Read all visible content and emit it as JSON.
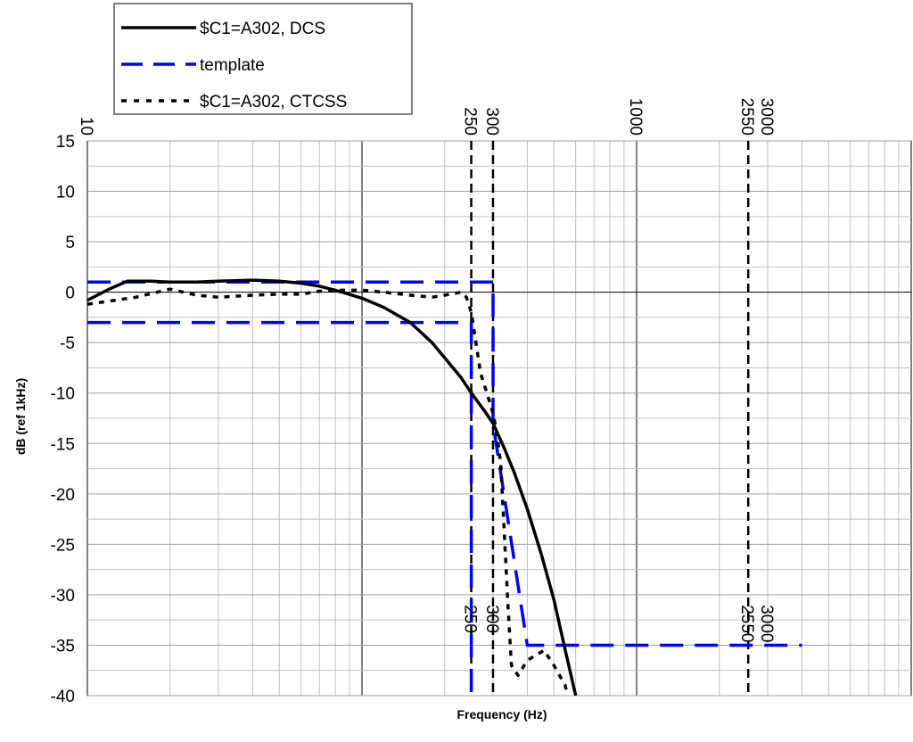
{
  "chart_data": {
    "type": "line",
    "xlabel": "Frequency (Hz)",
    "ylabel": "dB (ref 1kHz)",
    "x_scale": "log",
    "xlim": [
      10,
      10000
    ],
    "ylim": [
      -40,
      15
    ],
    "y_ticks": [
      15,
      10,
      5,
      0,
      -5,
      -10,
      -15,
      -20,
      -25,
      -30,
      -35,
      -40
    ],
    "grid": true,
    "legend_position": "top-left",
    "top_tick_labels": [
      "10",
      "250",
      "300",
      "1000",
      "2550",
      "3000"
    ],
    "marker_lines": [
      {
        "x": 250,
        "label": "250"
      },
      {
        "x": 300,
        "label": "300"
      },
      {
        "x": 2550,
        "label": "2550"
      }
    ],
    "bottom_labels": [
      {
        "x": 250,
        "label": "250"
      },
      {
        "x": 300,
        "label": "300"
      },
      {
        "x": 2550,
        "label": "2550"
      },
      {
        "x": 3000,
        "label": "3000"
      }
    ],
    "series": [
      {
        "name": "$C1=A302, DCS",
        "color": "#000000",
        "style": "solid",
        "x": [
          10,
          12,
          14,
          17,
          20,
          25,
          30,
          40,
          50,
          60,
          70,
          80,
          100,
          120,
          150,
          180,
          200,
          230,
          250,
          280,
          300,
          330,
          360,
          400,
          450,
          500,
          550,
          600
        ],
        "y": [
          -0.8,
          0.3,
          1.1,
          1.1,
          1.0,
          1.0,
          1.1,
          1.2,
          1.1,
          0.9,
          0.6,
          0.2,
          -0.6,
          -1.5,
          -3.0,
          -5.0,
          -6.5,
          -8.5,
          -10.0,
          -11.8,
          -13.0,
          -15.5,
          -18.0,
          -21.5,
          -26.0,
          -30.5,
          -35.5,
          -40.0
        ]
      },
      {
        "name": "template",
        "color": "#0000ff",
        "style": "dashed",
        "x": [
          10,
          300,
          300,
          400,
          4000
        ],
        "y": [
          1,
          1,
          -13,
          -35,
          -35
        ]
      },
      {
        "name": "template",
        "color": "#0000ff",
        "style": "dashed",
        "x": [
          10,
          250,
          250
        ],
        "y": [
          -3,
          -3,
          -40
        ]
      },
      {
        "name": "$C1=A302, CTCSS",
        "color": "#000000",
        "style": "dotted",
        "x": [
          10,
          15,
          20,
          25,
          30,
          40,
          50,
          60,
          70,
          80,
          100,
          120,
          150,
          180,
          200,
          230,
          240,
          250,
          260,
          270,
          285,
          300,
          310,
          320,
          330,
          340,
          350,
          370,
          400,
          430,
          460,
          500,
          550,
          560
        ],
        "y": [
          -1.2,
          -0.5,
          0.3,
          -0.3,
          -0.5,
          -0.3,
          -0.2,
          -0.2,
          0.1,
          0.2,
          0.2,
          0.0,
          -0.3,
          -0.5,
          -0.3,
          0.0,
          -0.5,
          -2.0,
          -5.0,
          -8.0,
          -10.0,
          -12.0,
          -14.0,
          -17.0,
          -24.0,
          -31.0,
          -37.0,
          -38.0,
          -36.5,
          -36.0,
          -35.5,
          -37.0,
          -39.0,
          -40.0
        ]
      }
    ]
  }
}
